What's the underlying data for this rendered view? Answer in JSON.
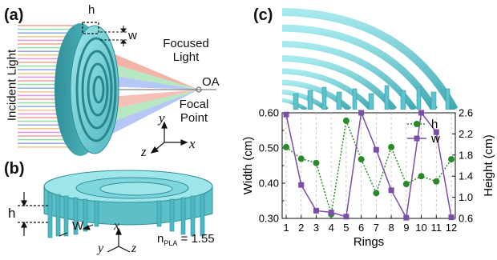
{
  "panels": {
    "a": {
      "label": "(a)",
      "incident": "Incident Light",
      "focused": "Focused Light",
      "oa": "OA",
      "focal": "Focal Point",
      "h": "h",
      "w": "w",
      "axis_x": "x",
      "axis_y": "y",
      "axis_z": "z"
    },
    "b": {
      "label": "(b)",
      "h": "h",
      "W": "W",
      "axis_x": "x",
      "axis_y": "y",
      "axis_z": "z",
      "n_main": "n",
      "n_sub": "PLA",
      "n_value": " = 1.55"
    },
    "c": {
      "label": "(c)"
    }
  },
  "colors": {
    "lens_teal": "#6fd0d8",
    "lens_dark": "#3a9fa8",
    "h_series": "#2a8a2a",
    "w_series": "#7b4fa6"
  },
  "chart_data": {
    "type": "line",
    "categories": [
      "1",
      "2",
      "3",
      "4",
      "5",
      "6",
      "7",
      "8",
      "9",
      "10",
      "11",
      "12"
    ],
    "xlabel": "Rings",
    "ylabel": "Width (cm)",
    "y2label": "Height (cm)",
    "ylim": [
      0.3,
      0.6
    ],
    "y2lim": [
      0.6,
      2.6
    ],
    "yticks": [
      "0.30",
      "0.40",
      "0.50",
      "0.60"
    ],
    "y2ticks": [
      "0.6",
      "1.0",
      "1.4",
      "1.8",
      "2.2",
      "2.6"
    ],
    "legend_position": "top-right",
    "grid": "vertical dashed",
    "series": [
      {
        "name": "h",
        "axis": "right",
        "style": "dotted-circle",
        "values": [
          1.95,
          1.73,
          1.65,
          0.68,
          2.45,
          1.72,
          1.08,
          1.95,
          1.25,
          1.4,
          1.3,
          1.72
        ]
      },
      {
        "name": "w",
        "axis": "left",
        "style": "solid-square",
        "values": [
          0.595,
          0.395,
          0.322,
          0.317,
          0.305,
          0.6,
          0.495,
          0.38,
          0.302,
          0.6,
          0.545,
          0.303
        ]
      }
    ]
  }
}
